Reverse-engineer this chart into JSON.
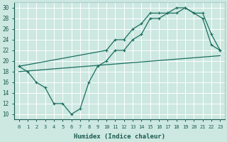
{
  "xlabel": "Humidex (Indice chaleur)",
  "bg_color": "#cce8e0",
  "grid_color": "#ffffff",
  "line_color": "#1a6e60",
  "xlim": [
    -0.5,
    23.5
  ],
  "ylim": [
    9,
    31
  ],
  "xticks": [
    0,
    1,
    2,
    3,
    4,
    5,
    6,
    7,
    8,
    9,
    10,
    11,
    12,
    13,
    14,
    15,
    16,
    17,
    18,
    19,
    20,
    21,
    22,
    23
  ],
  "yticks": [
    10,
    12,
    14,
    16,
    18,
    20,
    22,
    24,
    26,
    28,
    30
  ],
  "line1_x": [
    0,
    1,
    2,
    3,
    4,
    5,
    6,
    7,
    8,
    9,
    10,
    11,
    12,
    13,
    14,
    15,
    16,
    17,
    18,
    19,
    20,
    21,
    22,
    23
  ],
  "line1_y": [
    19,
    18,
    16,
    15,
    12,
    12,
    10,
    11,
    16,
    19,
    20,
    22,
    22,
    24,
    25,
    28,
    28,
    29,
    29,
    30,
    29,
    28,
    23,
    22
  ],
  "line2_x": [
    0,
    10,
    11,
    12,
    13,
    14,
    15,
    16,
    17,
    18,
    19,
    20,
    21,
    22,
    23
  ],
  "line2_y": [
    19,
    22,
    24,
    24,
    26,
    27,
    29,
    29,
    29,
    30,
    30,
    29,
    29,
    25,
    22
  ],
  "line3_x": [
    0,
    23
  ],
  "line3_y": [
    18,
    21
  ]
}
